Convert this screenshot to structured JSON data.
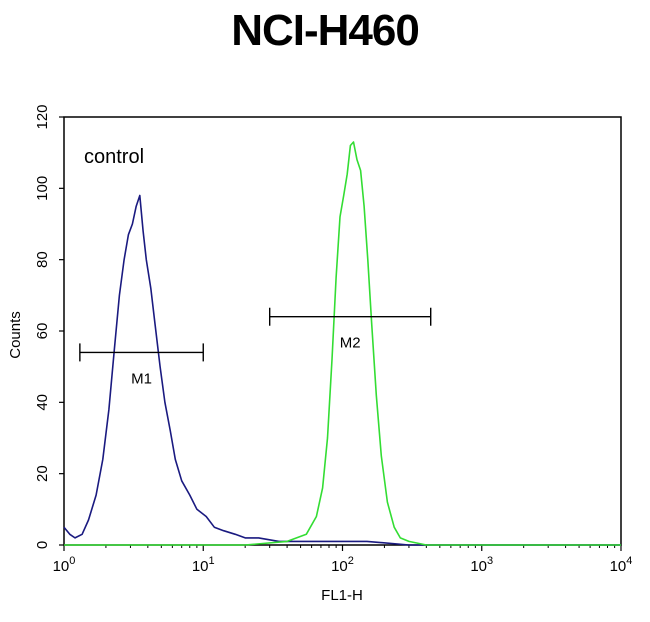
{
  "chart_data": {
    "type": "line",
    "title": "NCI-H460",
    "xlabel": "FL1-H",
    "ylabel": "Counts",
    "x_scale": "log",
    "xlim": [
      1,
      10000
    ],
    "ylim": [
      0,
      120
    ],
    "x_ticks": [
      1,
      10,
      100,
      1000,
      10000
    ],
    "y_ticks": [
      0,
      20,
      40,
      60,
      80,
      100,
      120
    ],
    "grid": false,
    "annotation": "control",
    "series": [
      {
        "color": "#1a1a80",
        "x": [
          1,
          1.1,
          1.2,
          1.35,
          1.5,
          1.7,
          1.9,
          2.1,
          2.3,
          2.5,
          2.7,
          2.9,
          3.1,
          3.3,
          3.5,
          3.7,
          3.9,
          4.2,
          4.5,
          4.9,
          5.3,
          5.8,
          6.3,
          7,
          8,
          9,
          10.5,
          12,
          14,
          17,
          20,
          25,
          35,
          50,
          80,
          150,
          300,
          1000,
          10000
        ],
        "y": [
          5,
          3,
          2,
          3,
          7,
          14,
          24,
          38,
          55,
          70,
          80,
          87,
          90,
          95,
          98,
          88,
          80,
          72,
          62,
          50,
          40,
          32,
          24,
          18,
          14,
          10,
          8,
          5,
          4,
          3,
          2,
          2,
          1,
          1,
          1,
          1,
          0,
          0,
          0
        ]
      },
      {
        "color": "#33dd33",
        "x": [
          1,
          20,
          40,
          55,
          65,
          72,
          78,
          84,
          90,
          96,
          102,
          108,
          114,
          120,
          127,
          135,
          143,
          152,
          162,
          175,
          190,
          210,
          235,
          260,
          300,
          400,
          700,
          10000
        ],
        "y": [
          0,
          0,
          1,
          3,
          8,
          16,
          30,
          52,
          75,
          92,
          98,
          104,
          112,
          113,
          108,
          105,
          95,
          80,
          62,
          42,
          25,
          12,
          5,
          2,
          1,
          0,
          0,
          0
        ]
      }
    ],
    "markers": [
      {
        "label": "M1",
        "x_start": 1.3,
        "x_end": 10,
        "y": 54
      },
      {
        "label": "M2",
        "x_start": 30,
        "x_end": 430,
        "y": 64
      }
    ]
  }
}
